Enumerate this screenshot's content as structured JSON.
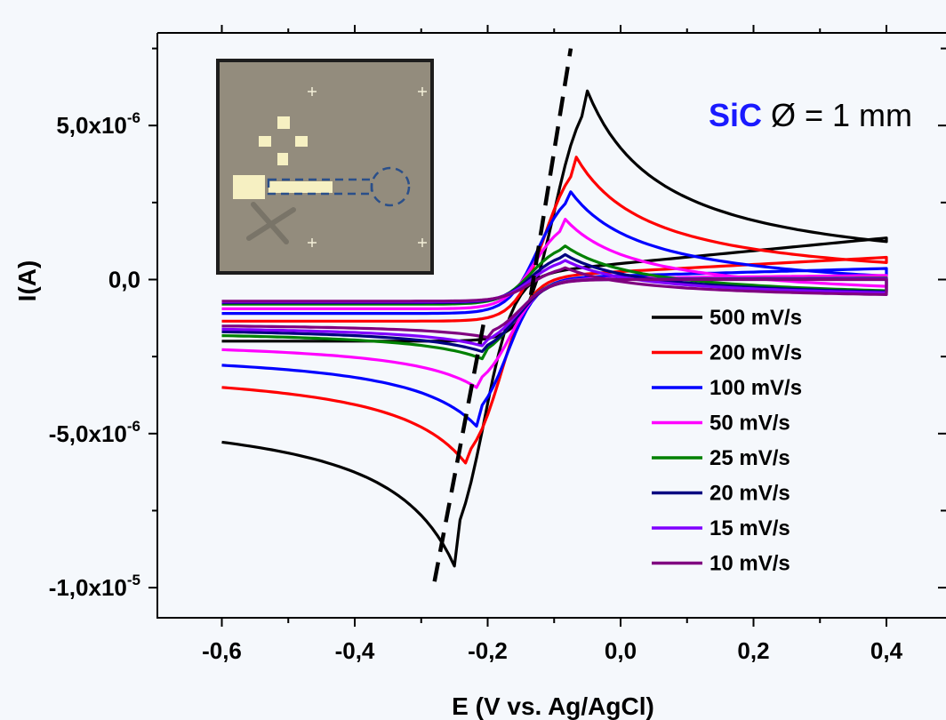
{
  "chart_data": {
    "type": "line",
    "title": "",
    "xlabel": "E (V vs. Ag/AgCl)",
    "ylabel": "I(A)",
    "xlim": [
      -0.7,
      0.48
    ],
    "ylim": [
      -1.1e-05,
      7.9e-06
    ],
    "xticks": [
      {
        "value": -0.6,
        "label": "-0,6"
      },
      {
        "value": -0.4,
        "label": "-0,4"
      },
      {
        "value": -0.2,
        "label": "-0,2"
      },
      {
        "value": 0.0,
        "label": "0,0"
      },
      {
        "value": 0.2,
        "label": "0,2"
      },
      {
        "value": 0.4,
        "label": "0,4"
      }
    ],
    "yticks": [
      {
        "value": 5e-06,
        "mantissa": "5,0x10",
        "exp": "-6"
      },
      {
        "value": 0,
        "mantissa": "0,0",
        "exp": ""
      },
      {
        "value": -5e-06,
        "mantissa": "-5,0x10",
        "exp": "-6"
      },
      {
        "value": -1e-05,
        "mantissa": "-1,0x10",
        "exp": "-5"
      }
    ],
    "grid": false,
    "legend_position": "bottom-right",
    "series": [
      {
        "name": "500 mV/s",
        "color": "#000000",
        "scan_rate": 500,
        "ipa": 6.4e-06,
        "epa": -0.055,
        "ipc": -9.3e-06,
        "epc": -0.25,
        "i_start": -4e-06,
        "i_end": 1.5e-06
      },
      {
        "name": "200 mV/s",
        "color": "#ff0000",
        "scan_rate": 200,
        "ipa": 4.1e-06,
        "epa": -0.07,
        "ipc": -6.2e-06,
        "epc": -0.225,
        "i_start": -2.7e-06,
        "i_end": 8e-07
      },
      {
        "name": "100 mV/s",
        "color": "#0000ff",
        "scan_rate": 100,
        "ipa": 3e-06,
        "epa": -0.08,
        "ipc": -4.8e-06,
        "epc": -0.215,
        "i_start": -2.2e-06,
        "i_end": 4e-07
      },
      {
        "name": "50 mV/s",
        "color": "#ff00ff",
        "scan_rate": 50,
        "ipa": 2e-06,
        "epa": -0.085,
        "ipc": -3.6e-06,
        "epc": -0.21,
        "i_start": -1.9e-06,
        "i_end": 1.5e-07
      },
      {
        "name": "25 mV/s",
        "color": "#008000",
        "scan_rate": 25,
        "ipa": 1.2e-06,
        "epa": -0.09,
        "ipc": -2.6e-06,
        "epc": -0.205,
        "i_start": -1.6e-06,
        "i_end": 5e-08
      },
      {
        "name": "20 mV/s",
        "color": "#000080",
        "scan_rate": 20,
        "ipa": 9e-07,
        "epa": -0.09,
        "ipc": -2.4e-06,
        "epc": -0.2,
        "i_start": -1.5e-06,
        "i_end": 3e-08
      },
      {
        "name": "15 mV/s",
        "color": "#8000ff",
        "scan_rate": 15,
        "ipa": 7e-07,
        "epa": -0.09,
        "ipc": -2.2e-06,
        "epc": -0.2,
        "i_start": -1.45e-06,
        "i_end": 2e-08
      },
      {
        "name": "10 mV/s",
        "color": "#800080",
        "scan_rate": 10,
        "ipa": 4.5e-07,
        "epa": -0.09,
        "ipc": -1.9e-06,
        "epc": -0.195,
        "i_start": -1.4e-06,
        "i_end": 0.0
      }
    ],
    "dashed_lines": [
      {
        "from": [
          -0.28,
          -9.8e-06
        ],
        "to": [
          -0.205,
          -1.3e-06
        ]
      },
      {
        "from": [
          -0.135,
          -5e-07
        ],
        "to": [
          -0.075,
          7.5e-06
        ]
      }
    ],
    "annotation": {
      "material": "SiC",
      "material_color": "#1a1aff",
      "text": "Ø = 1 mm"
    },
    "inset": {
      "image": "photo of SiC electrode chip",
      "bg_color": "#938c7d",
      "pad_color": "#f6f0c2",
      "highlight_color": "#2a4f8a"
    }
  }
}
